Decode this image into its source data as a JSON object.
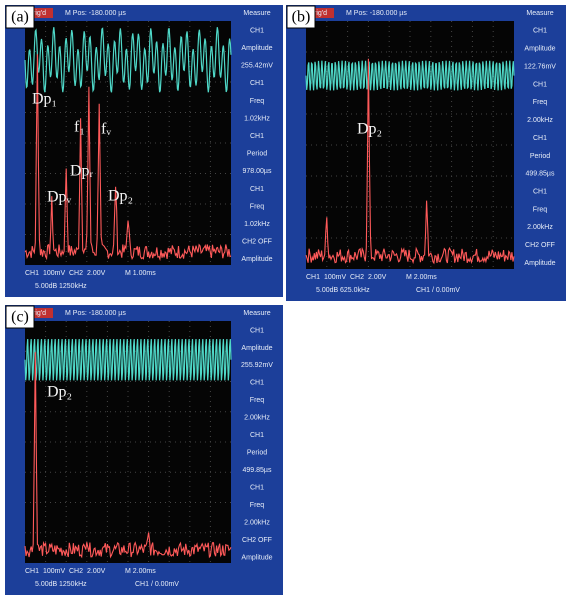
{
  "panels": [
    {
      "label": "(a)",
      "trigger": "Trig'd",
      "position": "M Pos: -180.000 µs",
      "measure": [
        "Measure",
        "CH1",
        "Amplitude",
        "255.42mV",
        "CH1",
        "Freq",
        "1.02kHz",
        "CH1",
        "Period",
        "978.00µs",
        "CH1",
        "Freq",
        "1.02kHz",
        "CH2 OFF",
        "Amplitude"
      ],
      "footer": [
        "CH1",
        "100mV",
        "CH2",
        "2.00V",
        "M 1.00ms"
      ],
      "footer2": [
        "5.00dB",
        "1250kHz"
      ],
      "annotations": [
        "Dp₁",
        "f₁",
        "fᵥ",
        "Dpᵥ",
        "Dpᵣ",
        "Dp₂"
      ]
    },
    {
      "label": "(b)",
      "trigger": "Trig'd",
      "position": "M Pos: -180.000 µs",
      "measure": [
        "Measure",
        "CH1",
        "Amplitude",
        "122.76mV",
        "CH1",
        "Freq",
        "2.00kHz",
        "CH1",
        "Period",
        "499.85µs",
        "CH1",
        "Freq",
        "2.00kHz",
        "CH2 OFF",
        "Amplitude"
      ],
      "footer": [
        "CH1",
        "100mV",
        "CH2",
        "2.00V",
        "M 2.00ms"
      ],
      "footer2": [
        "5.00dB",
        "625.0kHz",
        "CH1 / 0.00mV"
      ],
      "annotations": [
        "Dp₂"
      ]
    },
    {
      "label": "(c)",
      "trigger": "Trig'd",
      "position": "M Pos: -180.000 µs",
      "measure": [
        "Measure",
        "CH1",
        "Amplitude",
        "255.92mV",
        "CH1",
        "Freq",
        "2.00kHz",
        "CH1",
        "Period",
        "499.85µs",
        "CH1",
        "Freq",
        "2.00kHz",
        "CH2 OFF",
        "Amplitude"
      ],
      "footer": [
        "CH1",
        "100mV",
        "CH2",
        "2.00V",
        "M 2.00ms"
      ],
      "footer2": [
        "5.00dB",
        "1250kHz",
        "CH1 / 0.00mV"
      ],
      "annotations": [
        "Dp₂"
      ]
    }
  ]
}
